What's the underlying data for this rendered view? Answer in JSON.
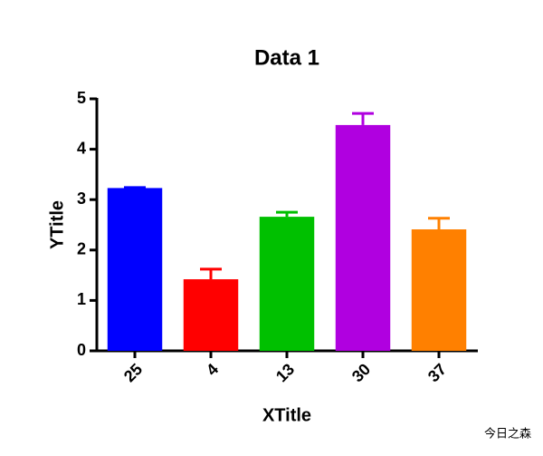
{
  "chart_data": {
    "type": "bar",
    "title": "Data 1",
    "x_label": "XTitle",
    "y_label": "YTitle",
    "categories": [
      "25",
      "4",
      "13",
      "30",
      "37"
    ],
    "values": [
      3.23,
      1.42,
      2.66,
      4.48,
      2.41
    ],
    "errors": [
      0.01,
      0.2,
      0.09,
      0.23,
      0.22
    ],
    "colors": [
      "#0000ff",
      "#ff0000",
      "#00c000",
      "#b000e0",
      "#ff8000"
    ],
    "ylim": [
      0,
      5
    ],
    "yticks": [
      0,
      1,
      2,
      3,
      4,
      5
    ],
    "grid": false
  },
  "watermark": "今日之森"
}
